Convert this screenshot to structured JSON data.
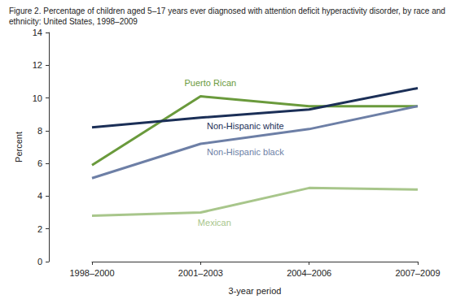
{
  "chart_data": {
    "type": "line",
    "title": "Figure 2. Percentage of children aged 5–17 years ever diagnosed with attention deficit hyperactivity disorder, by race and ethnicity: United States, 1998–2009",
    "x_label": "3-year period",
    "y_label": "Percent",
    "categories": [
      "1998–2000",
      "2001–2003",
      "2004–2006",
      "2007–2009"
    ],
    "series": [
      {
        "name": "Puerto Rican",
        "color": "#6a9a3c",
        "values": [
          5.9,
          10.1,
          9.5,
          9.5
        ]
      },
      {
        "name": "Non-Hispanic white",
        "color": "#1b2f57",
        "values": [
          8.2,
          8.8,
          9.3,
          10.6
        ]
      },
      {
        "name": "Non-Hispanic black",
        "color": "#6d7fa6",
        "values": [
          5.1,
          7.2,
          8.1,
          9.5
        ]
      },
      {
        "name": "Mexican",
        "color": "#a8c68b",
        "values": [
          2.8,
          3.0,
          4.5,
          4.4
        ]
      }
    ],
    "ylim": [
      0,
      14
    ],
    "yticks": [
      0,
      2,
      4,
      6,
      8,
      10,
      12,
      14
    ],
    "grid": false
  }
}
